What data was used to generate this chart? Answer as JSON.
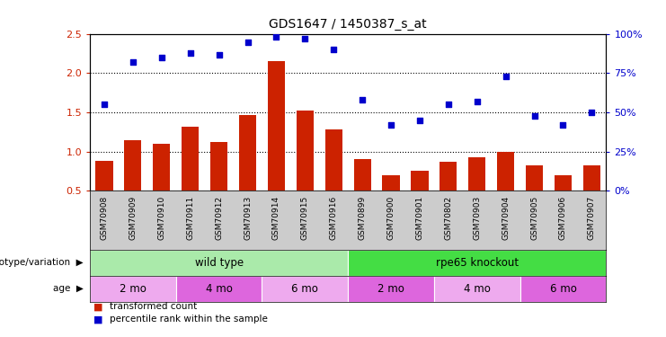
{
  "title": "GDS1647 / 1450387_s_at",
  "samples": [
    "GSM70908",
    "GSM70909",
    "GSM70910",
    "GSM70911",
    "GSM70912",
    "GSM70913",
    "GSM70914",
    "GSM70915",
    "GSM70916",
    "GSM70899",
    "GSM70900",
    "GSM70901",
    "GSM70802",
    "GSM70903",
    "GSM70904",
    "GSM70905",
    "GSM70906",
    "GSM70907"
  ],
  "transformed_count": [
    0.88,
    1.15,
    1.1,
    1.32,
    1.12,
    1.47,
    2.15,
    1.52,
    1.28,
    0.9,
    0.7,
    0.75,
    0.87,
    0.93,
    1.0,
    0.82,
    0.7,
    0.82
  ],
  "percentile_rank": [
    55,
    82,
    85,
    88,
    87,
    95,
    98,
    97,
    90,
    58,
    42,
    45,
    55,
    57,
    73,
    48,
    42,
    50
  ],
  "bar_color": "#cc2200",
  "dot_color": "#0000cc",
  "ylim_left": [
    0.5,
    2.5
  ],
  "ylim_right": [
    0,
    100
  ],
  "yticks_left": [
    0.5,
    1.0,
    1.5,
    2.0,
    2.5
  ],
  "yticks_right": [
    0,
    25,
    50,
    75,
    100
  ],
  "ytick_labels_right": [
    "0%",
    "25%",
    "50%",
    "75%",
    "100%"
  ],
  "hlines": [
    1.0,
    1.5,
    2.0
  ],
  "background_color": "#ffffff",
  "xtick_bg_color": "#cccccc",
  "genotype_groups": [
    {
      "label": "wild type",
      "start": 0,
      "end": 9,
      "color": "#aaeaaa"
    },
    {
      "label": "rpe65 knockout",
      "start": 9,
      "end": 18,
      "color": "#44dd44"
    }
  ],
  "age_groups": [
    {
      "label": "2 mo",
      "start": 0,
      "end": 3,
      "color": "#eeaaee"
    },
    {
      "label": "4 mo",
      "start": 3,
      "end": 6,
      "color": "#dd66dd"
    },
    {
      "label": "6 mo",
      "start": 6,
      "end": 9,
      "color": "#eeaaee"
    },
    {
      "label": "2 mo",
      "start": 9,
      "end": 12,
      "color": "#dd66dd"
    },
    {
      "label": "4 mo",
      "start": 12,
      "end": 15,
      "color": "#eeaaee"
    },
    {
      "label": "6 mo",
      "start": 15,
      "end": 18,
      "color": "#dd66dd"
    }
  ],
  "legend_items": [
    {
      "label": "transformed count",
      "color": "#cc2200"
    },
    {
      "label": "percentile rank within the sample",
      "color": "#0000cc"
    }
  ]
}
